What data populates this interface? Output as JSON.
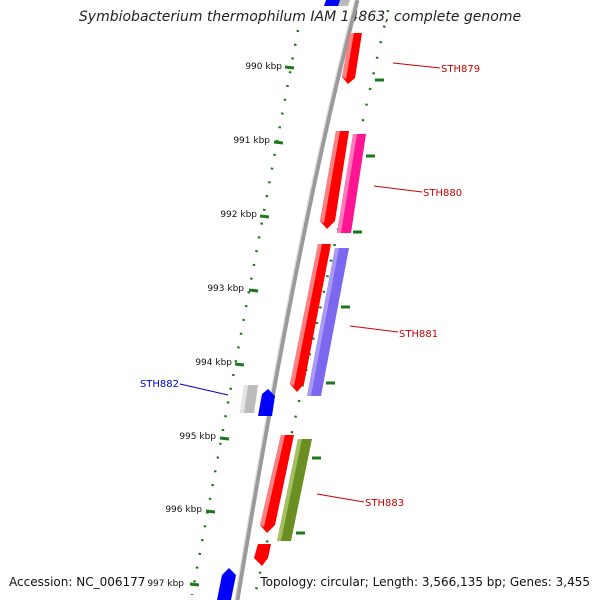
{
  "title": "Symbiobacterium thermophilum IAM 14863, complete genome",
  "accession": "Accession: NC_006177",
  "topology": "Topology: circular; Length: 3,566,135 bp; Genes: 3,455",
  "colors": {
    "axis": "#999999",
    "tick": "#1a7a1a",
    "label_red": "#cc0000",
    "label_blue": "#0000cc",
    "gene_red": "#ff0000",
    "gene_pink": "#ff1493",
    "gene_purple": "#7b68ee",
    "gene_olive": "#6b8e23",
    "gene_blue": "#0000ff",
    "gene_grey": "#bbbbbb"
  },
  "scale": {
    "ticks": [
      {
        "label": "990 kbp"
      },
      {
        "label": "991 kbp"
      },
      {
        "label": "992 kbp"
      },
      {
        "label": "993 kbp"
      },
      {
        "label": "994 kbp"
      },
      {
        "label": "995 kbp"
      },
      {
        "label": "996 kbp"
      },
      {
        "label": "997 kbp"
      }
    ]
  },
  "gene_labels": [
    {
      "name": "STH879",
      "color": "label_red"
    },
    {
      "name": "STH880",
      "color": "label_red"
    },
    {
      "name": "STH881",
      "color": "label_red"
    },
    {
      "name": "STH882",
      "color": "label_blue"
    },
    {
      "name": "STH883",
      "color": "label_red"
    }
  ]
}
